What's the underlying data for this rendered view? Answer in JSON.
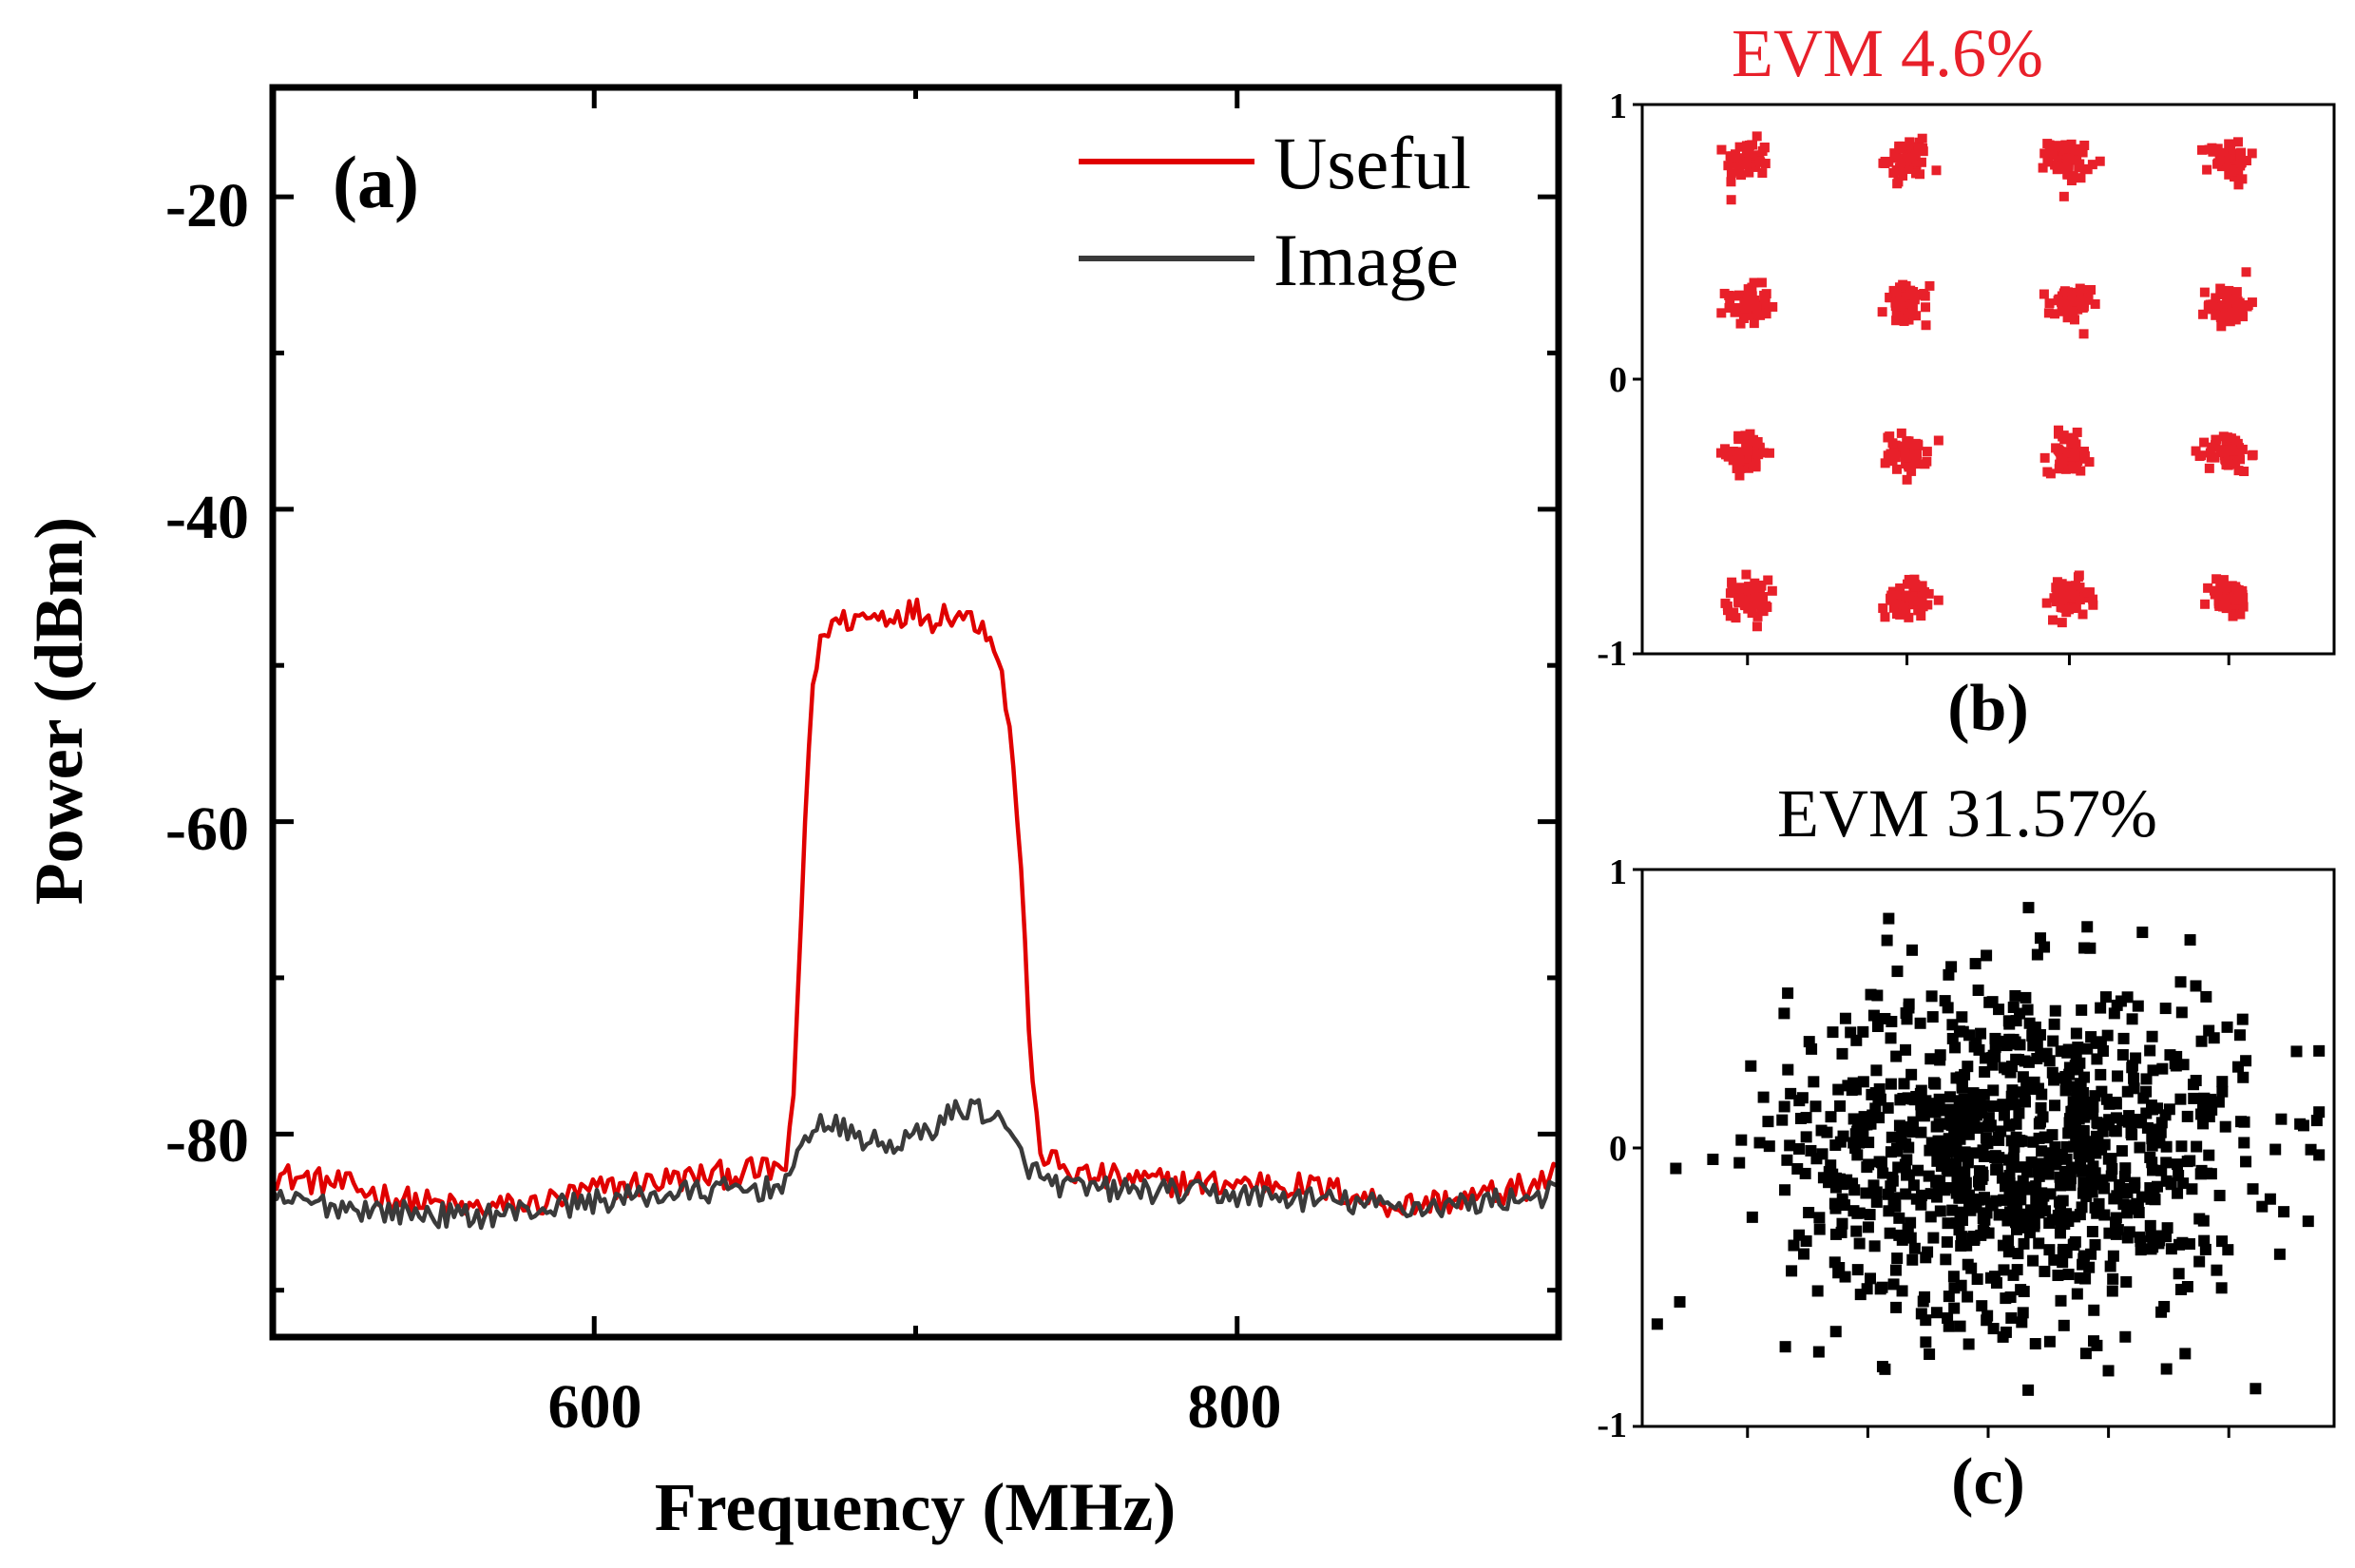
{
  "colors": {
    "useful": "#e00000",
    "image": "#3a3a3a",
    "constellation_good": "#e8202a",
    "constellation_bad": "#000000",
    "axes": "#000000"
  },
  "chart_data": [
    {
      "id": "a",
      "type": "line",
      "panel_label": "(a)",
      "xlabel": "Frequency (MHz)",
      "ylabel": "Power (dBm)",
      "xlim": [
        500,
        900
      ],
      "ylim": [
        -93,
        -13
      ],
      "xticks": [
        600,
        800
      ],
      "yticks": [
        -20,
        -40,
        -60,
        -80
      ],
      "legend_position": "top-right",
      "series": [
        {
          "name": "Useful",
          "color": "#e00000",
          "x": [
            500,
            520,
            540,
            560,
            580,
            600,
            620,
            640,
            655,
            660,
            662,
            664,
            666,
            668,
            672,
            680,
            690,
            700,
            705,
            710,
            720,
            725,
            730,
            733,
            735,
            737,
            740,
            750,
            770,
            790,
            810,
            830,
            850,
            870,
            890,
            900
          ],
          "y": [
            -82.6,
            -83.2,
            -84.2,
            -84.8,
            -84.6,
            -83.6,
            -83.0,
            -82.6,
            -82.3,
            -82.0,
            -78.0,
            -68.0,
            -58.0,
            -51.0,
            -47.5,
            -47.0,
            -46.8,
            -46.5,
            -47.0,
            -46.5,
            -47.2,
            -48.5,
            -55.0,
            -64.0,
            -72.0,
            -79.0,
            -81.5,
            -82.6,
            -83.0,
            -83.2,
            -83.1,
            -83.6,
            -84.6,
            -84.2,
            -83.4,
            -82.6
          ]
        },
        {
          "name": "Image",
          "color": "#3a3a3a",
          "x": [
            500,
            520,
            540,
            560,
            580,
            600,
            620,
            640,
            655,
            662,
            668,
            675,
            680,
            690,
            700,
            705,
            712,
            718,
            725,
            730,
            735,
            740,
            750,
            770,
            790,
            810,
            830,
            850,
            870,
            890,
            900
          ],
          "y": [
            -84.2,
            -84.6,
            -85.0,
            -85.3,
            -84.9,
            -84.3,
            -83.9,
            -83.6,
            -83.5,
            -82.5,
            -79.2,
            -79.6,
            -80.0,
            -80.8,
            -80.2,
            -79.6,
            -78.6,
            -78.2,
            -79.0,
            -80.5,
            -82.0,
            -83.0,
            -83.5,
            -83.6,
            -83.8,
            -84.0,
            -84.3,
            -84.7,
            -84.5,
            -84.0,
            -83.8
          ]
        }
      ]
    },
    {
      "id": "b",
      "type": "scatter",
      "panel_label": "(b)",
      "title": "EVM 4.6%",
      "xlim": [
        -1.15,
        1.15
      ],
      "ylim": [
        -1,
        1
      ],
      "yticks": [
        1,
        0,
        -1
      ],
      "color": "#e8202a",
      "cluster_centers_x": [
        -0.8,
        -0.27,
        0.27,
        0.8
      ],
      "cluster_centers_y": [
        0.8,
        0.27,
        -0.27,
        -0.8
      ],
      "cluster_spread": 0.035
    },
    {
      "id": "c",
      "type": "scatter",
      "panel_label": "(c)",
      "title": "EVM 31.57%",
      "xlim": [
        -1.15,
        1.15
      ],
      "ylim": [
        -1,
        1
      ],
      "yticks": [
        1,
        0,
        -1
      ],
      "color": "#000000",
      "point_count": 1000,
      "center": [
        0.1,
        0.0
      ],
      "spread": [
        0.38,
        0.3
      ]
    }
  ]
}
